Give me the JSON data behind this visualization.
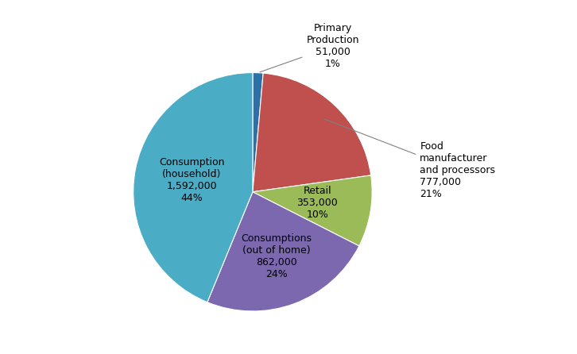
{
  "slices": [
    {
      "label_short": "Primary\nProduction\n51,000\n1%",
      "value": 51000,
      "color": "#2E6FA8"
    },
    {
      "label_short": "Food\nmanufacturer\nand processors\n777,000\n21%",
      "value": 777000,
      "color": "#C0504D"
    },
    {
      "label_short": "Retail\n353,000\n10%",
      "value": 353000,
      "color": "#9BBB59"
    },
    {
      "label_short": "Consumptions\n(out of home)\n862,000\n24%",
      "value": 862000,
      "color": "#7B68AE"
    },
    {
      "label_short": "Consumption\n(household)\n1,592,000\n44%",
      "value": 1592000,
      "color": "#4BACC6"
    }
  ],
  "background_color": "#FFFFFF",
  "fontsize": 9,
  "startangle": 90
}
